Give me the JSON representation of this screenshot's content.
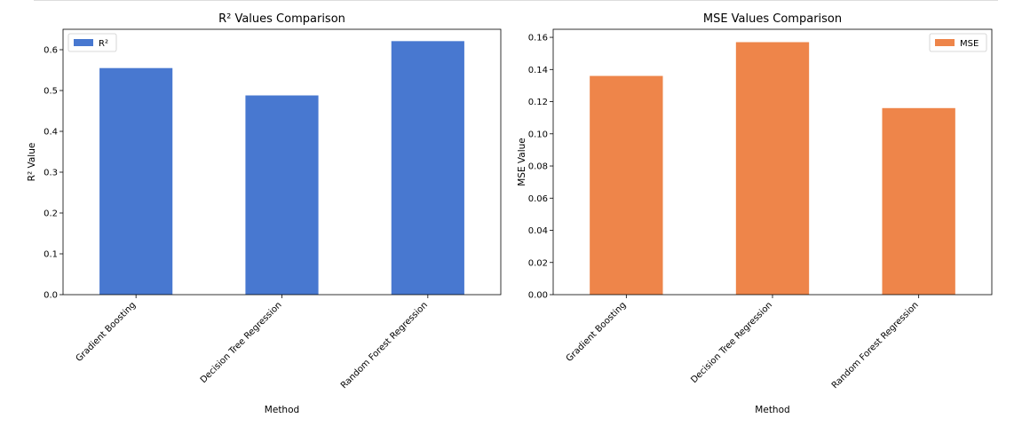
{
  "chart_data": [
    {
      "type": "bar",
      "title": "R² Values Comparison",
      "xlabel": "Method",
      "ylabel": "R² Value",
      "categories": [
        "Gradient Boosting",
        "Decision Tree Regression",
        "Random Forest Regression"
      ],
      "series": [
        {
          "name": "R²",
          "values": [
            0.555,
            0.488,
            0.621
          ]
        }
      ],
      "ylim": [
        0,
        0.65
      ],
      "yticks": [
        "0.0",
        "0.1",
        "0.2",
        "0.3",
        "0.4",
        "0.5",
        "0.6"
      ],
      "color": "#4878d0",
      "legend": "top-left",
      "grid": false
    },
    {
      "type": "bar",
      "title": "MSE Values Comparison",
      "xlabel": "Method",
      "ylabel": "MSE Value",
      "categories": [
        "Gradient Boosting",
        "Decision Tree Regression",
        "Random Forest Regression"
      ],
      "series": [
        {
          "name": "MSE",
          "values": [
            0.136,
            0.157,
            0.116
          ]
        }
      ],
      "ylim": [
        0,
        0.165
      ],
      "yticks": [
        "0.00",
        "0.02",
        "0.04",
        "0.06",
        "0.08",
        "0.10",
        "0.12",
        "0.14",
        "0.16"
      ],
      "color": "#ee854a",
      "legend": "top-right",
      "grid": false
    }
  ]
}
